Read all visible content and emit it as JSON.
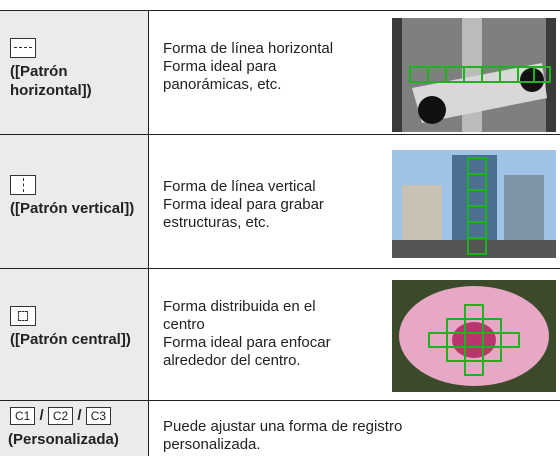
{
  "table": {
    "rows": [
      {
        "label": "([Patrón horizontal])",
        "description": [
          "Forma de línea horizontal",
          "Forma ideal para",
          "panorámicas, etc."
        ]
      },
      {
        "label": "([Patrón vertical])",
        "description": [
          "Forma de línea vertical",
          "Forma ideal para grabar",
          "estructuras, etc."
        ]
      },
      {
        "label": "([Patrón central])",
        "description": [
          "Forma distribuida en el",
          "centro",
          "Forma ideal para enfocar",
          "alrededor del centro."
        ]
      }
    ],
    "custom": {
      "icons": [
        "C1",
        "C2",
        "C3"
      ],
      "separator": "/",
      "label": "(Personalizada)",
      "description": [
        "Puede ajustar una forma de registro",
        "personalizada."
      ]
    }
  }
}
